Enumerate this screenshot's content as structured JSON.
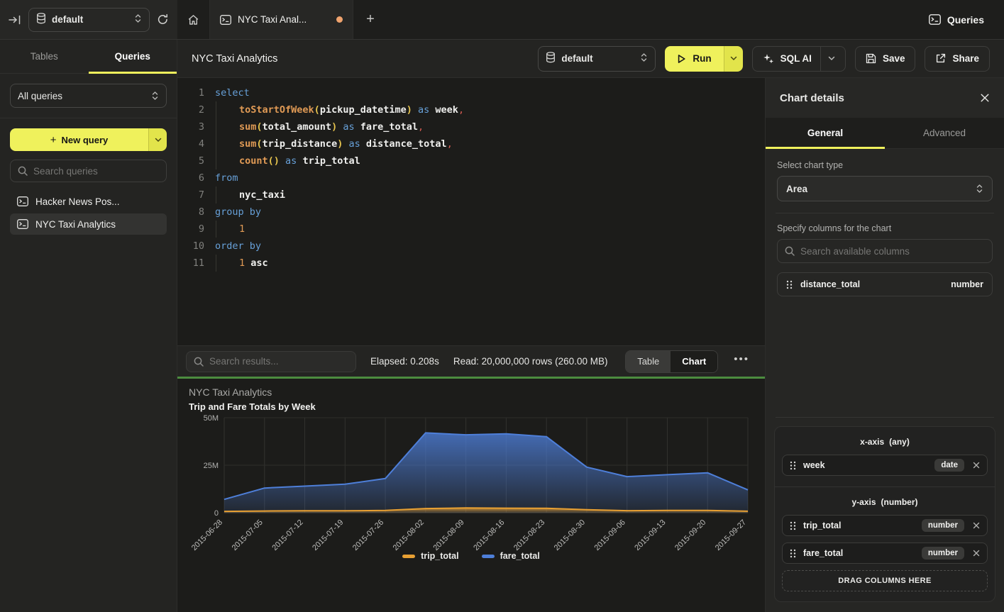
{
  "colors": {
    "accent_yellow": "#eff15c",
    "success_green": "#4c8c3f",
    "tab_dirty_dot": "#efa36e",
    "series_trip_total": "#e8a033",
    "series_fare_total": "#4e7fd9"
  },
  "topbar": {
    "db_selector": "default",
    "tab_title": "NYC Taxi Anal...",
    "queries_label": "Queries"
  },
  "sidebar": {
    "tab_tables": "Tables",
    "tab_queries": "Queries",
    "filter_value": "All queries",
    "new_query_label": "New query",
    "search_placeholder": "Search queries",
    "queries": [
      {
        "label": "Hacker News Pos...",
        "selected": false
      },
      {
        "label": "NYC Taxi Analytics",
        "selected": true
      }
    ]
  },
  "header": {
    "title": "NYC Taxi Analytics",
    "db_selector": "default",
    "run_label": "Run",
    "sql_ai_label": "SQL AI",
    "save_label": "Save",
    "share_label": "Share"
  },
  "editor": {
    "lines": [
      {
        "n": 1,
        "indent": false,
        "tokens": [
          [
            "kw",
            "select"
          ]
        ]
      },
      {
        "n": 2,
        "indent": true,
        "tokens": [
          [
            "fn",
            "toStartOfWeek"
          ],
          [
            "pr",
            "("
          ],
          [
            "id",
            "pickup_datetime"
          ],
          [
            "pr",
            ")"
          ],
          [
            "tx",
            " "
          ],
          [
            "kw",
            "as"
          ],
          [
            "tx",
            " "
          ],
          [
            "id",
            "week"
          ],
          [
            "pu",
            ","
          ]
        ]
      },
      {
        "n": 3,
        "indent": true,
        "tokens": [
          [
            "fn",
            "sum"
          ],
          [
            "pr",
            "("
          ],
          [
            "id",
            "total_amount"
          ],
          [
            "pr",
            ")"
          ],
          [
            "tx",
            " "
          ],
          [
            "kw",
            "as"
          ],
          [
            "tx",
            " "
          ],
          [
            "id",
            "fare_total"
          ],
          [
            "pu",
            ","
          ]
        ]
      },
      {
        "n": 4,
        "indent": true,
        "tokens": [
          [
            "fn",
            "sum"
          ],
          [
            "pr",
            "("
          ],
          [
            "id",
            "trip_distance"
          ],
          [
            "pr",
            ")"
          ],
          [
            "tx",
            " "
          ],
          [
            "kw",
            "as"
          ],
          [
            "tx",
            " "
          ],
          [
            "id",
            "distance_total"
          ],
          [
            "pu",
            ","
          ]
        ]
      },
      {
        "n": 5,
        "indent": true,
        "tokens": [
          [
            "fn",
            "count"
          ],
          [
            "pr",
            "()"
          ],
          [
            "tx",
            " "
          ],
          [
            "kw",
            "as"
          ],
          [
            "tx",
            " "
          ],
          [
            "id",
            "trip_total"
          ]
        ]
      },
      {
        "n": 6,
        "indent": false,
        "tokens": [
          [
            "kw",
            "from"
          ]
        ]
      },
      {
        "n": 7,
        "indent": true,
        "tokens": [
          [
            "id",
            "nyc_taxi"
          ]
        ]
      },
      {
        "n": 8,
        "indent": false,
        "tokens": [
          [
            "kw",
            "group by"
          ]
        ]
      },
      {
        "n": 9,
        "indent": true,
        "tokens": [
          [
            "nu",
            "1"
          ]
        ]
      },
      {
        "n": 10,
        "indent": false,
        "tokens": [
          [
            "kw",
            "order by"
          ]
        ]
      },
      {
        "n": 11,
        "indent": true,
        "tokens": [
          [
            "nu",
            "1"
          ],
          [
            "tx",
            " "
          ],
          [
            "id",
            "asc"
          ]
        ]
      }
    ]
  },
  "results": {
    "search_placeholder": "Search results...",
    "elapsed": "Elapsed: 0.208s",
    "read": "Read: 20,000,000 rows (260.00 MB)",
    "view_table": "Table",
    "view_chart": "Chart",
    "more": "..."
  },
  "chart_data": {
    "type": "area",
    "title": "NYC Taxi Analytics",
    "subtitle": "Trip and Fare Totals by Week",
    "categories": [
      "2015-06-28",
      "2015-07-05",
      "2015-07-12",
      "2015-07-19",
      "2015-07-26",
      "2015-08-02",
      "2015-08-09",
      "2015-08-16",
      "2015-08-23",
      "2015-08-30",
      "2015-09-06",
      "2015-09-13",
      "2015-09-20",
      "2015-09-27"
    ],
    "series": [
      {
        "name": "trip_total",
        "color": "#e8a033",
        "values": [
          700000,
          900000,
          1000000,
          1000000,
          1200000,
          2200000,
          2500000,
          2400000,
          2300000,
          1600000,
          1100000,
          1200000,
          1200000,
          800000
        ]
      },
      {
        "name": "fare_total",
        "color": "#4e7fd9",
        "values": [
          7000000,
          13000000,
          14000000,
          15000000,
          18000000,
          42000000,
          41000000,
          41500000,
          40000000,
          24000000,
          19000000,
          20000000,
          21000000,
          12000000
        ]
      }
    ],
    "ylim": [
      0,
      50000000
    ],
    "ytick_labels": [
      "0",
      "25M",
      "50M"
    ],
    "grid": "vertical",
    "legend_position": "bottom",
    "xlabel": "",
    "ylabel": ""
  },
  "panel": {
    "title": "Chart details",
    "tab_general": "General",
    "tab_advanced": "Advanced",
    "chart_type_label": "Select chart type",
    "chart_type_value": "Area",
    "columns_label": "Specify columns for the chart",
    "columns_search_placeholder": "Search available columns",
    "available_columns": [
      {
        "name": "distance_total",
        "type": "number"
      }
    ],
    "x_axis": {
      "label": "x-axis",
      "hint": "(any)",
      "items": [
        {
          "name": "week",
          "type": "date"
        }
      ]
    },
    "y_axis": {
      "label": "y-axis",
      "hint": "(number)",
      "items": [
        {
          "name": "trip_total",
          "type": "number"
        },
        {
          "name": "fare_total",
          "type": "number"
        }
      ]
    },
    "drop_zone_label": "DRAG COLUMNS HERE"
  }
}
